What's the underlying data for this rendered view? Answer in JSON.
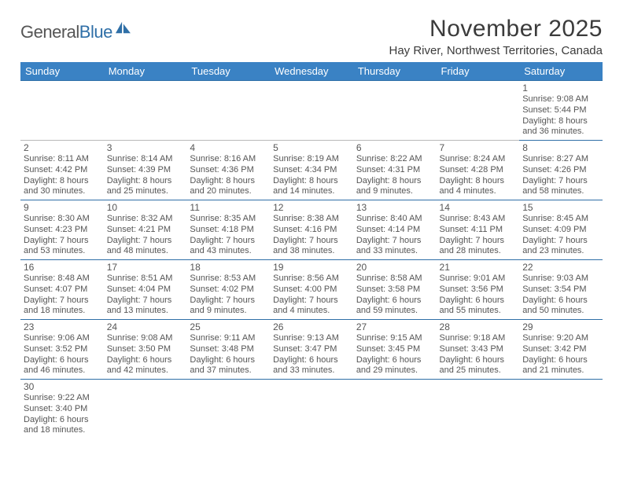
{
  "logo": {
    "text1": "General",
    "text2": "Blue"
  },
  "title": "November 2025",
  "location": "Hay River, Northwest Territories, Canada",
  "colors": {
    "header_bg": "#3a82c4",
    "header_fg": "#ffffff",
    "rule": "#2f6fa7",
    "text": "#555555"
  },
  "dayHeaders": [
    "Sunday",
    "Monday",
    "Tuesday",
    "Wednesday",
    "Thursday",
    "Friday",
    "Saturday"
  ],
  "weeks": [
    [
      null,
      null,
      null,
      null,
      null,
      null,
      {
        "n": "1",
        "sr": "9:08 AM",
        "ss": "5:44 PM",
        "d1": "8 hours",
        "d2": "and 36 minutes."
      }
    ],
    [
      {
        "n": "2",
        "sr": "8:11 AM",
        "ss": "4:42 PM",
        "d1": "8 hours",
        "d2": "and 30 minutes."
      },
      {
        "n": "3",
        "sr": "8:14 AM",
        "ss": "4:39 PM",
        "d1": "8 hours",
        "d2": "and 25 minutes."
      },
      {
        "n": "4",
        "sr": "8:16 AM",
        "ss": "4:36 PM",
        "d1": "8 hours",
        "d2": "and 20 minutes."
      },
      {
        "n": "5",
        "sr": "8:19 AM",
        "ss": "4:34 PM",
        "d1": "8 hours",
        "d2": "and 14 minutes."
      },
      {
        "n": "6",
        "sr": "8:22 AM",
        "ss": "4:31 PM",
        "d1": "8 hours",
        "d2": "and 9 minutes."
      },
      {
        "n": "7",
        "sr": "8:24 AM",
        "ss": "4:28 PM",
        "d1": "8 hours",
        "d2": "and 4 minutes."
      },
      {
        "n": "8",
        "sr": "8:27 AM",
        "ss": "4:26 PM",
        "d1": "7 hours",
        "d2": "and 58 minutes."
      }
    ],
    [
      {
        "n": "9",
        "sr": "8:30 AM",
        "ss": "4:23 PM",
        "d1": "7 hours",
        "d2": "and 53 minutes."
      },
      {
        "n": "10",
        "sr": "8:32 AM",
        "ss": "4:21 PM",
        "d1": "7 hours",
        "d2": "and 48 minutes."
      },
      {
        "n": "11",
        "sr": "8:35 AM",
        "ss": "4:18 PM",
        "d1": "7 hours",
        "d2": "and 43 minutes."
      },
      {
        "n": "12",
        "sr": "8:38 AM",
        "ss": "4:16 PM",
        "d1": "7 hours",
        "d2": "and 38 minutes."
      },
      {
        "n": "13",
        "sr": "8:40 AM",
        "ss": "4:14 PM",
        "d1": "7 hours",
        "d2": "and 33 minutes."
      },
      {
        "n": "14",
        "sr": "8:43 AM",
        "ss": "4:11 PM",
        "d1": "7 hours",
        "d2": "and 28 minutes."
      },
      {
        "n": "15",
        "sr": "8:45 AM",
        "ss": "4:09 PM",
        "d1": "7 hours",
        "d2": "and 23 minutes."
      }
    ],
    [
      {
        "n": "16",
        "sr": "8:48 AM",
        "ss": "4:07 PM",
        "d1": "7 hours",
        "d2": "and 18 minutes."
      },
      {
        "n": "17",
        "sr": "8:51 AM",
        "ss": "4:04 PM",
        "d1": "7 hours",
        "d2": "and 13 minutes."
      },
      {
        "n": "18",
        "sr": "8:53 AM",
        "ss": "4:02 PM",
        "d1": "7 hours",
        "d2": "and 9 minutes."
      },
      {
        "n": "19",
        "sr": "8:56 AM",
        "ss": "4:00 PM",
        "d1": "7 hours",
        "d2": "and 4 minutes."
      },
      {
        "n": "20",
        "sr": "8:58 AM",
        "ss": "3:58 PM",
        "d1": "6 hours",
        "d2": "and 59 minutes."
      },
      {
        "n": "21",
        "sr": "9:01 AM",
        "ss": "3:56 PM",
        "d1": "6 hours",
        "d2": "and 55 minutes."
      },
      {
        "n": "22",
        "sr": "9:03 AM",
        "ss": "3:54 PM",
        "d1": "6 hours",
        "d2": "and 50 minutes."
      }
    ],
    [
      {
        "n": "23",
        "sr": "9:06 AM",
        "ss": "3:52 PM",
        "d1": "6 hours",
        "d2": "and 46 minutes."
      },
      {
        "n": "24",
        "sr": "9:08 AM",
        "ss": "3:50 PM",
        "d1": "6 hours",
        "d2": "and 42 minutes."
      },
      {
        "n": "25",
        "sr": "9:11 AM",
        "ss": "3:48 PM",
        "d1": "6 hours",
        "d2": "and 37 minutes."
      },
      {
        "n": "26",
        "sr": "9:13 AM",
        "ss": "3:47 PM",
        "d1": "6 hours",
        "d2": "and 33 minutes."
      },
      {
        "n": "27",
        "sr": "9:15 AM",
        "ss": "3:45 PM",
        "d1": "6 hours",
        "d2": "and 29 minutes."
      },
      {
        "n": "28",
        "sr": "9:18 AM",
        "ss": "3:43 PM",
        "d1": "6 hours",
        "d2": "and 25 minutes."
      },
      {
        "n": "29",
        "sr": "9:20 AM",
        "ss": "3:42 PM",
        "d1": "6 hours",
        "d2": "and 21 minutes."
      }
    ],
    [
      {
        "n": "30",
        "sr": "9:22 AM",
        "ss": "3:40 PM",
        "d1": "6 hours",
        "d2": "and 18 minutes."
      },
      null,
      null,
      null,
      null,
      null,
      null
    ]
  ]
}
